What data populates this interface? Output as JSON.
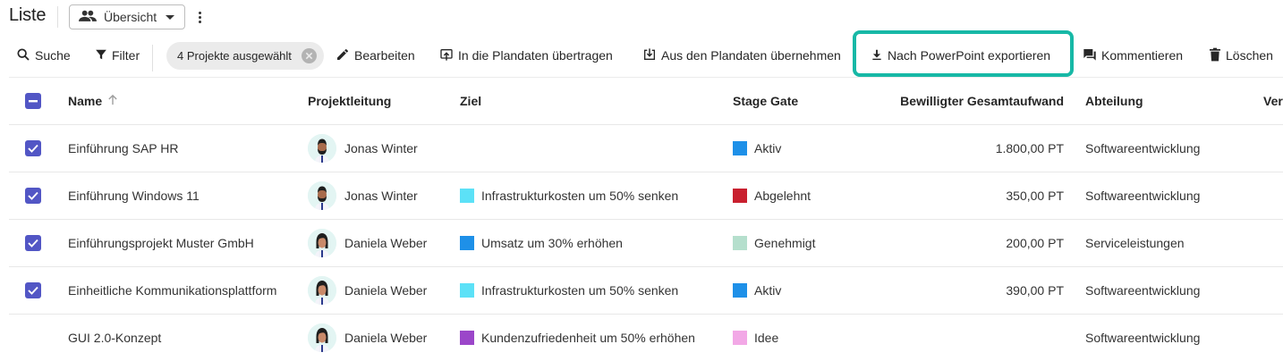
{
  "header": {
    "title": "Liste",
    "view_selector": {
      "label": "Übersicht",
      "icon": "people-icon"
    },
    "more_icon": "more-vert-icon"
  },
  "toolbar": {
    "search_label": "Suche",
    "filter_label": "Filter",
    "selection_chip": "4 Projekte ausgewählt",
    "edit_label": "Bearbeiten",
    "transfer_to_plan_label": "In die Plandaten übertragen",
    "take_from_plan_label": "Aus den Plandaten übernehmen",
    "export_ppt_label": "Nach PowerPoint exportieren",
    "comment_label": "Kommentieren",
    "delete_label": "Löschen",
    "highlight_color": "#17b8a6"
  },
  "table": {
    "columns": {
      "name": "Name",
      "lead": "Projektleitung",
      "goal": "Ziel",
      "stage": "Stage Gate",
      "effort": "Bewilligter Gesamtaufwand",
      "dept": "Abteilung",
      "ver": "Ver"
    },
    "sort": {
      "column": "name",
      "direction": "asc"
    },
    "header_checkbox_state": "indeterminate",
    "rows": [
      {
        "selected": true,
        "name": "Einführung SAP HR",
        "lead": "Jonas Winter",
        "lead_avatar": "male",
        "goal": "",
        "goal_color": "",
        "stage": "Aktiv",
        "stage_color": "#1e90e8",
        "effort": "1.800,00 PT",
        "dept": "Softwareentwicklung"
      },
      {
        "selected": true,
        "name": "Einführung Windows 11",
        "lead": "Jonas Winter",
        "lead_avatar": "male",
        "goal": "Infrastrukturkosten um 50% senken",
        "goal_color": "#5ce1f7",
        "stage": "Abgelehnt",
        "stage_color": "#c9202f",
        "effort": "350,00 PT",
        "dept": "Softwareentwicklung"
      },
      {
        "selected": true,
        "name": "Einführungsprojekt Muster GmbH",
        "lead": "Daniela Weber",
        "lead_avatar": "female",
        "goal": "Umsatz um 30% erhöhen",
        "goal_color": "#1e90e8",
        "stage": "Genehmigt",
        "stage_color": "#b5dfcd",
        "effort": "200,00 PT",
        "dept": "Serviceleistungen"
      },
      {
        "selected": true,
        "name": "Einheitliche Kommunikationsplattform",
        "lead": "Daniela Weber",
        "lead_avatar": "female",
        "goal": "Infrastrukturkosten um 50% senken",
        "goal_color": "#5ce1f7",
        "stage": "Aktiv",
        "stage_color": "#1e90e8",
        "effort": "390,00 PT",
        "dept": "Softwareentwicklung"
      },
      {
        "selected": false,
        "name": "GUI 2.0-Konzept",
        "lead": "Daniela Weber",
        "lead_avatar": "female",
        "goal": "Kundenzufriedenheit um 50% erhöhen",
        "goal_color": "#9b46c9",
        "stage": "Idee",
        "stage_color": "#f2a8e6",
        "effort": "",
        "dept": "Softwareentwicklung"
      }
    ]
  },
  "colors": {
    "checkbox": "#5256c5",
    "divider": "#e8e8e8",
    "chip_bg": "#ebebeb"
  }
}
